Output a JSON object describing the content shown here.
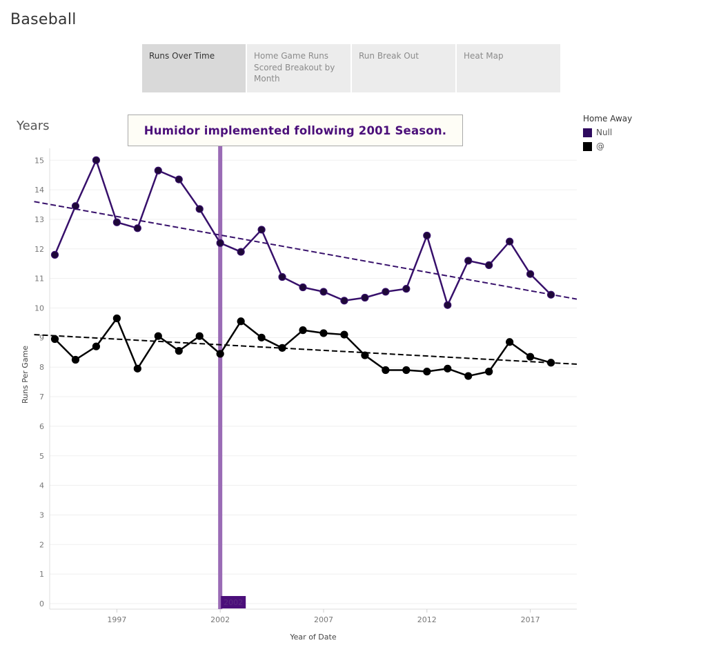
{
  "app": {
    "title": "Baseball"
  },
  "tabs": [
    {
      "label": "Runs Over Time",
      "active": true
    },
    {
      "label": "Home Game Runs Scored Breakout by Month",
      "active": false
    },
    {
      "label": "Run Break Out",
      "active": false
    },
    {
      "label": "Heat Map",
      "active": false
    }
  ],
  "chart_title": "Years",
  "annotation": "Humidor implemented following 2001 Season.",
  "legend": {
    "title": "Home Away",
    "items": [
      {
        "label": "Null",
        "color": "#2e0a5e"
      },
      {
        "label": "@",
        "color": "#000000"
      }
    ]
  },
  "colors": {
    "home_line": "#37106b",
    "away_line": "#000000",
    "reference_line": "#9a6bb5",
    "reference_badge": "#4b0f7a"
  },
  "chart_data": {
    "type": "line",
    "xlabel": "Year of Date",
    "ylabel": "Runs Per Game",
    "x": [
      1994,
      1995,
      1996,
      1997,
      1998,
      1999,
      2000,
      2001,
      2002,
      2003,
      2004,
      2005,
      2006,
      2007,
      2008,
      2009,
      2010,
      2011,
      2012,
      2013,
      2014,
      2015,
      2016,
      2017,
      2018
    ],
    "xlim": [
      1993.75,
      2019.25
    ],
    "ylim": [
      0,
      15.3
    ],
    "x_ticks": [
      1997,
      2002,
      2007,
      2012,
      2017
    ],
    "y_ticks": [
      0,
      1,
      2,
      3,
      4,
      5,
      6,
      7,
      8,
      9,
      10,
      11,
      12,
      13,
      14,
      15
    ],
    "grid": true,
    "legend_position": "top-right",
    "reference_line": {
      "x": 2002,
      "label": "2002"
    },
    "series": [
      {
        "name": "Null",
        "values": [
          11.8,
          13.45,
          15.0,
          12.9,
          12.7,
          14.65,
          14.35,
          13.35,
          12.2,
          11.9,
          12.65,
          11.05,
          10.7,
          10.55,
          10.25,
          10.35,
          10.55,
          10.65,
          12.45,
          10.1,
          11.6,
          11.45,
          12.25,
          11.15,
          10.45
        ],
        "trend": [
          13.6,
          10.3
        ],
        "trend_xlim": [
          1993,
          2019.25
        ]
      },
      {
        "name": "@",
        "values": [
          8.95,
          8.25,
          8.7,
          9.65,
          7.95,
          9.05,
          8.55,
          9.05,
          8.45,
          9.55,
          9.0,
          8.65,
          9.25,
          9.15,
          9.1,
          8.4,
          7.9,
          7.9,
          7.85,
          7.95,
          7.7,
          7.85,
          8.85,
          8.35,
          8.15
        ],
        "trend": [
          9.1,
          8.1
        ],
        "trend_xlim": [
          1993,
          2019.25
        ]
      }
    ]
  }
}
